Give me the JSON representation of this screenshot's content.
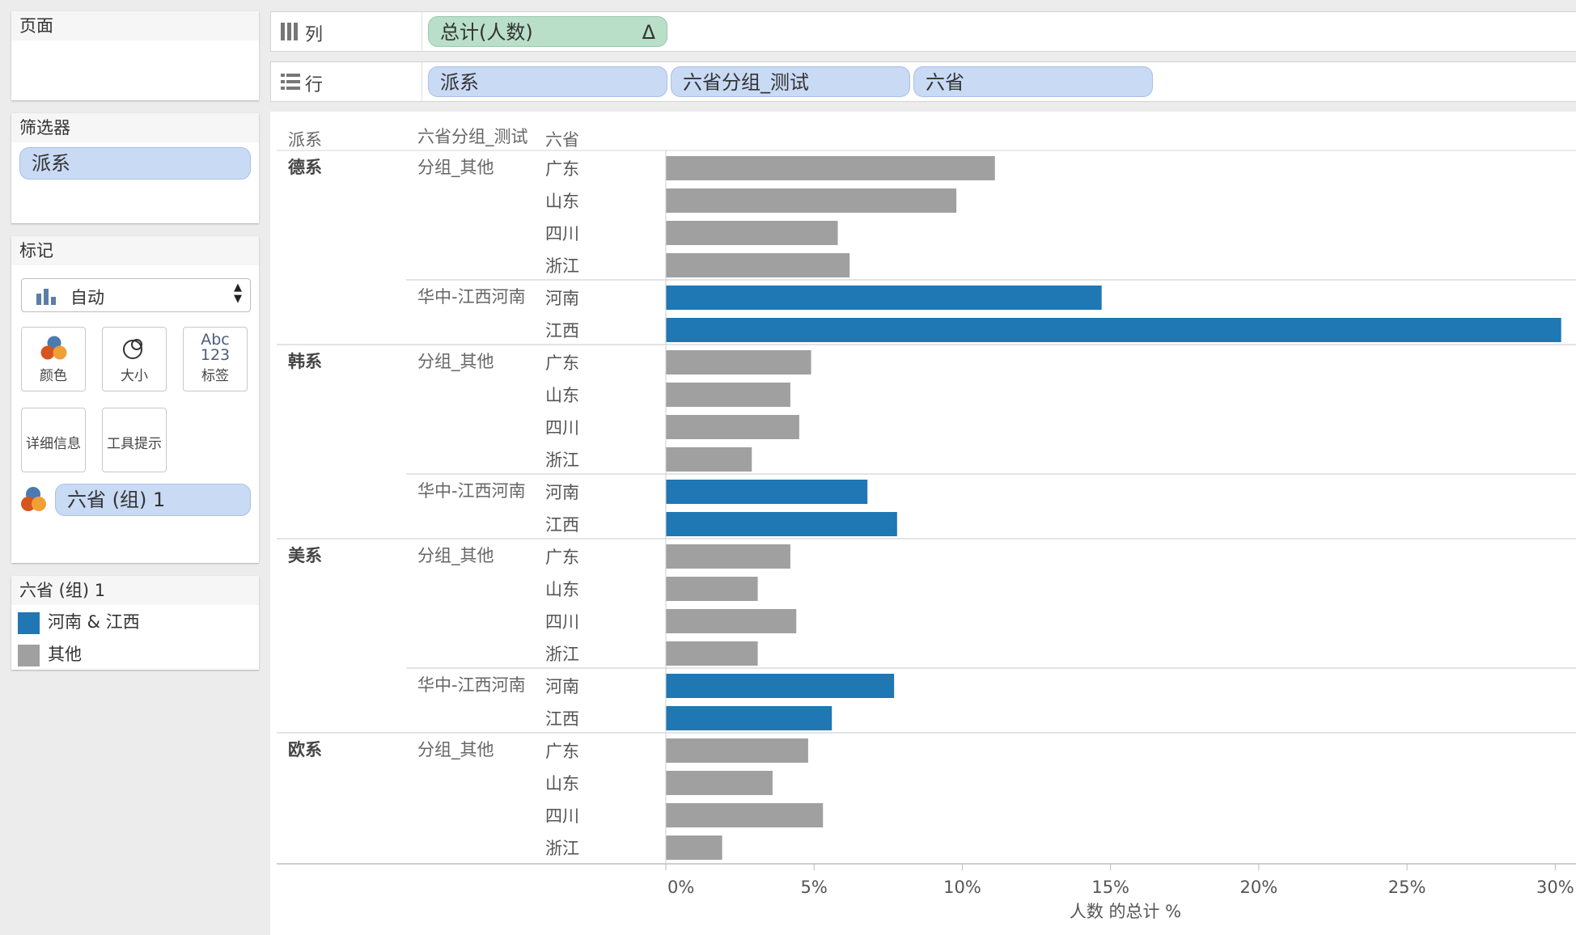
{
  "pages": {
    "title": "页面"
  },
  "filters": {
    "title": "筛选器",
    "pill": "派系"
  },
  "marks": {
    "title": "标记",
    "type_select": "自动",
    "buttons": {
      "color": "颜色",
      "size": "大小",
      "label": "标签",
      "detail": "详细信息",
      "tooltip": "工具提示"
    },
    "label_icon_text": "Abc",
    "label_icon_num": "123",
    "color_field": "六省 (组) 1"
  },
  "legend": {
    "title": "六省 (组) 1",
    "items": [
      {
        "label": "河南 & 江西",
        "color": "#1f77b4"
      },
      {
        "label": "其他",
        "color": "#a0a0a0"
      }
    ]
  },
  "columns_shelf": {
    "label": "列",
    "pill": "总计(人数)",
    "delta": "Δ"
  },
  "rows_shelf": {
    "label": "行",
    "pills": [
      "派系",
      "六省分组_测试",
      "六省"
    ]
  },
  "chart_data": {
    "type": "bar",
    "orientation": "horizontal",
    "headers": [
      "派系",
      "六省分组_测试",
      "六省"
    ],
    "xlabel": "人数 的总计 %",
    "xlim": [
      0,
      30.7
    ],
    "xticks": [
      0,
      5,
      10,
      15,
      20,
      25,
      30
    ],
    "xtick_labels": [
      "0%",
      "5%",
      "10%",
      "15%",
      "20%",
      "25%",
      "30%"
    ],
    "colors": {
      "other": "#a0a0a0",
      "highlight": "#1f77b4"
    },
    "factions": [
      {
        "name": "德系",
        "groups": [
          {
            "name": "分组_其他",
            "rows": [
              {
                "province": "广东",
                "value": 11.1,
                "color_group": "other"
              },
              {
                "province": "山东",
                "value": 9.8,
                "color_group": "other"
              },
              {
                "province": "四川",
                "value": 5.8,
                "color_group": "other"
              },
              {
                "province": "浙江",
                "value": 6.2,
                "color_group": "other"
              }
            ]
          },
          {
            "name": "华中-江西河南",
            "rows": [
              {
                "province": "河南",
                "value": 14.7,
                "color_group": "highlight"
              },
              {
                "province": "江西",
                "value": 30.2,
                "color_group": "highlight"
              }
            ]
          }
        ]
      },
      {
        "name": "韩系",
        "groups": [
          {
            "name": "分组_其他",
            "rows": [
              {
                "province": "广东",
                "value": 4.9,
                "color_group": "other"
              },
              {
                "province": "山东",
                "value": 4.2,
                "color_group": "other"
              },
              {
                "province": "四川",
                "value": 4.5,
                "color_group": "other"
              },
              {
                "province": "浙江",
                "value": 2.9,
                "color_group": "other"
              }
            ]
          },
          {
            "name": "华中-江西河南",
            "rows": [
              {
                "province": "河南",
                "value": 6.8,
                "color_group": "highlight"
              },
              {
                "province": "江西",
                "value": 7.8,
                "color_group": "highlight"
              }
            ]
          }
        ]
      },
      {
        "name": "美系",
        "groups": [
          {
            "name": "分组_其他",
            "rows": [
              {
                "province": "广东",
                "value": 4.2,
                "color_group": "other"
              },
              {
                "province": "山东",
                "value": 3.1,
                "color_group": "other"
              },
              {
                "province": "四川",
                "value": 4.4,
                "color_group": "other"
              },
              {
                "province": "浙江",
                "value": 3.1,
                "color_group": "other"
              }
            ]
          },
          {
            "name": "华中-江西河南",
            "rows": [
              {
                "province": "河南",
                "value": 7.7,
                "color_group": "highlight"
              },
              {
                "province": "江西",
                "value": 5.6,
                "color_group": "highlight"
              }
            ]
          }
        ]
      },
      {
        "name": "欧系",
        "groups": [
          {
            "name": "分组_其他",
            "rows": [
              {
                "province": "广东",
                "value": 4.8,
                "color_group": "other"
              },
              {
                "province": "山东",
                "value": 3.6,
                "color_group": "other"
              },
              {
                "province": "四川",
                "value": 5.3,
                "color_group": "other"
              },
              {
                "province": "浙江",
                "value": 1.9,
                "color_group": "other"
              }
            ]
          }
        ]
      }
    ]
  }
}
